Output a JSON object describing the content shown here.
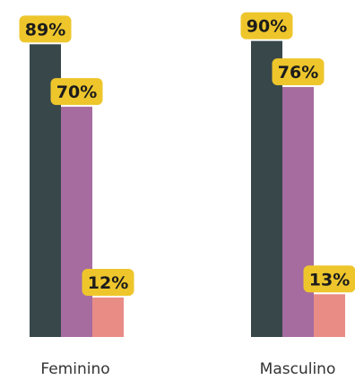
{
  "chart_data": {
    "type": "bar",
    "categories": [
      "Feminino",
      "Masculino"
    ],
    "series": [
      {
        "values": [
          89,
          90
        ],
        "labels": [
          "89%",
          "90%"
        ],
        "color": "#37474a"
      },
      {
        "values": [
          70,
          76
        ],
        "labels": [
          "70%",
          "76%"
        ],
        "color": "#a66ca0"
      },
      {
        "values": [
          12,
          13
        ],
        "labels": [
          "12%",
          "13%"
        ],
        "color": "#e98c86"
      }
    ],
    "title": "",
    "xlabel": "",
    "ylabel": "",
    "ylim": [
      0,
      100
    ],
    "grid": false,
    "legend": "none",
    "label_badge_color": "#eec62c"
  }
}
